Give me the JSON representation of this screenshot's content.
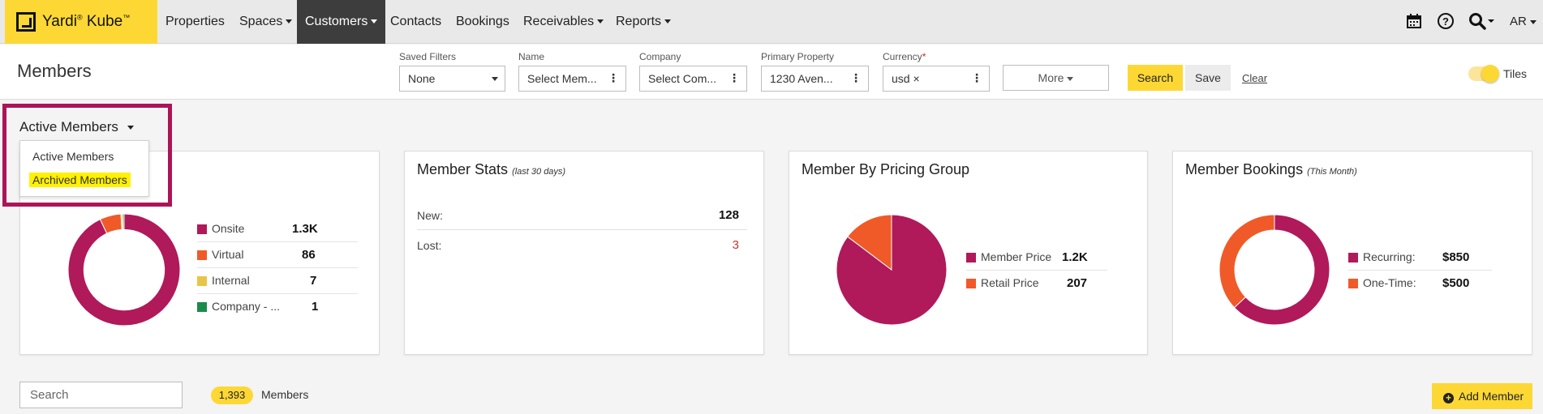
{
  "nav": {
    "logo": "Yardi",
    "logo_reg": "®",
    "logo_product": " Kube",
    "logo_tm": "™",
    "items": [
      {
        "label": "Properties"
      },
      {
        "label": "Spaces"
      },
      {
        "label": "Customers"
      },
      {
        "label": "Contacts"
      },
      {
        "label": "Bookings"
      },
      {
        "label": "Receivables"
      },
      {
        "label": "Reports"
      }
    ],
    "user_initials": "AR",
    "icons": [
      "calendar-icon",
      "help-icon",
      "search-icon"
    ]
  },
  "toolbar": {
    "title": "Members",
    "filters": {
      "saved": {
        "label": "Saved Filters",
        "value": "None"
      },
      "name": {
        "label": "Name",
        "value": "Select Mem..."
      },
      "company": {
        "label": "Company",
        "value": "Select Com..."
      },
      "property": {
        "label": "Primary Property",
        "value": "1230 Aven..."
      },
      "currency": {
        "label": "Currency",
        "required_mark": "*",
        "value": "usd ×"
      }
    },
    "more_label": "More",
    "search_label": "Search",
    "save_label": "Save",
    "clear_label": "Clear",
    "tiles_label": "Tiles",
    "tiles_on": true
  },
  "view_select": {
    "selected": "Active Members",
    "options": [
      "Active Members",
      "Archived Members"
    ],
    "highlighted_option": "Archived Members"
  },
  "cards": {
    "location": {
      "chart_data": {
        "type": "pie",
        "style": "donut",
        "categories": [
          "Onsite",
          "Virtual",
          "Internal",
          "Company - ..."
        ],
        "values": [
          1300,
          86,
          7,
          1
        ],
        "value_labels": [
          "1.3K",
          "86",
          "7",
          "1"
        ],
        "colors": [
          "#b0195a",
          "#f05a28",
          "#e8c547",
          "#1b8a4a"
        ]
      }
    },
    "stats": {
      "title": "Member Stats",
      "subtitle": "(last 30 days)",
      "rows": [
        {
          "label": "New:",
          "value": "128"
        },
        {
          "label": "Lost:",
          "value": "3"
        }
      ]
    },
    "pricing": {
      "title": "Member By Pricing Group",
      "chart_data": {
        "type": "pie",
        "categories": [
          "Member Price",
          "Retail Price"
        ],
        "values": [
          1200,
          207
        ],
        "value_labels": [
          "1.2K",
          "207"
        ],
        "colors": [
          "#b0195a",
          "#f05a28"
        ]
      }
    },
    "bookings": {
      "title": "Member Bookings",
      "subtitle": "(This Month)",
      "chart_data": {
        "type": "pie",
        "style": "donut",
        "categories": [
          "Recurring:",
          "One-Time:"
        ],
        "values": [
          850,
          500
        ],
        "value_labels": [
          "$850",
          "$500"
        ],
        "colors": [
          "#b0195a",
          "#f05a28"
        ]
      }
    }
  },
  "list": {
    "search_placeholder": "Search",
    "count": "1,393",
    "count_label": "Members",
    "add_label": "Add Member"
  }
}
